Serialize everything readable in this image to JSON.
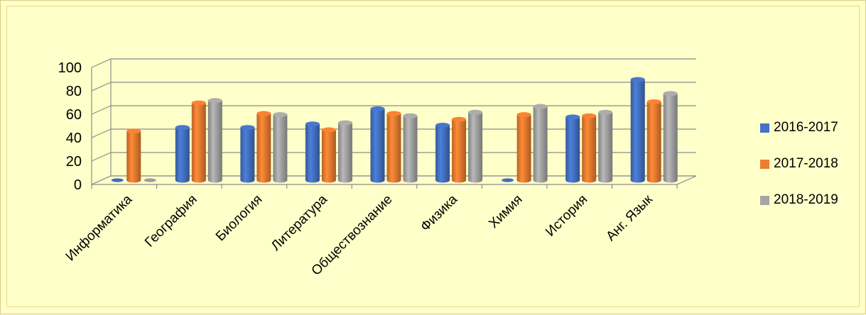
{
  "chart_data": {
    "type": "bar",
    "title": "",
    "xlabel": "",
    "ylabel": "",
    "ylim": [
      0,
      100
    ],
    "yticks": [
      "0",
      "20",
      "40",
      "60",
      "80",
      "100"
    ],
    "grid": true,
    "legend_position": "right",
    "categories": [
      "Информатика",
      "География",
      "Биология",
      "Литература",
      "Обществознание",
      "Физика",
      "Химия",
      "История",
      "Анг. Язык"
    ],
    "series": [
      {
        "name": "2016-2017",
        "color": "#4472c4",
        "values": [
          0,
          45,
          45,
          48,
          61,
          47,
          0,
          54,
          86
        ]
      },
      {
        "name": "2017-2018",
        "color": "#ed7d31",
        "values": [
          42,
          66,
          57,
          43,
          57,
          52,
          56,
          55,
          67
        ]
      },
      {
        "name": "2018-2019",
        "color": "#a5a5a5",
        "values": [
          0,
          68,
          56,
          49,
          55,
          58,
          63,
          58,
          74
        ]
      }
    ]
  }
}
